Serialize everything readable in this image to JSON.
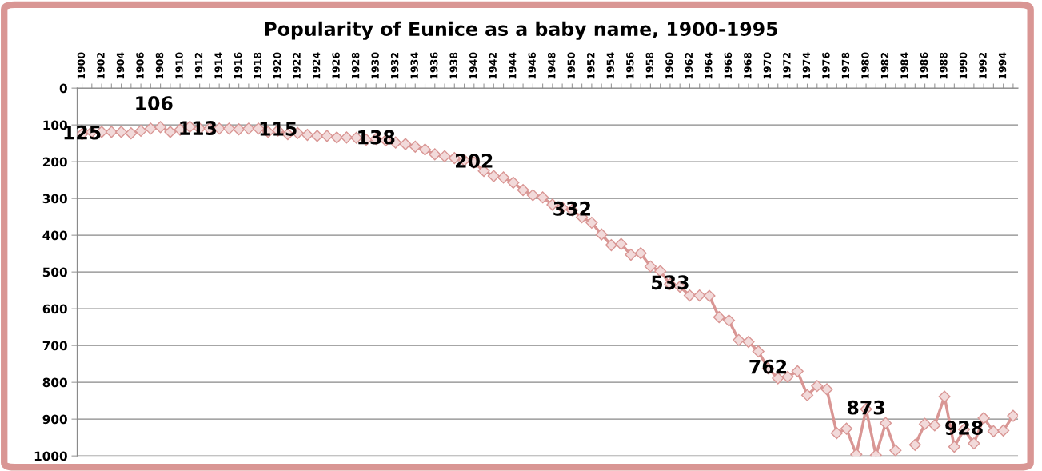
{
  "chart_data": {
    "type": "line",
    "title": "Popularity of Eunice as a baby name, 1900-1995",
    "categories": [
      "1900",
      null,
      "1902",
      null,
      "1904",
      null,
      "1906",
      null,
      "1908",
      null,
      "1910",
      null,
      "1912",
      null,
      "1914",
      null,
      "1916",
      null,
      "1918",
      null,
      "1920",
      null,
      "1922",
      null,
      "1924",
      null,
      "1926",
      null,
      "1928",
      null,
      "1930",
      null,
      "1932",
      null,
      "1934",
      null,
      "1936",
      null,
      "1938",
      null,
      "1940",
      null,
      "1942",
      null,
      "1944",
      null,
      "1946",
      null,
      "1948",
      null,
      "1950",
      null,
      "1952",
      null,
      "1954",
      null,
      "1956",
      null,
      "1958",
      null,
      "1960",
      null,
      "1962",
      null,
      "1964",
      null,
      "1966",
      null,
      "1968",
      null,
      "1970",
      null,
      "1972",
      null,
      "1974",
      null,
      "1976",
      null,
      "1978",
      null,
      "1980",
      null,
      "1982",
      null,
      "1984",
      null,
      "1986",
      null,
      "1988",
      null,
      "1990",
      null,
      "1992",
      null,
      "1994",
      null
    ],
    "series": [
      {
        "color": "#d99694",
        "values": [
          125,
          119,
          119,
          119,
          119,
          123,
          116,
          110,
          106,
          119,
          113,
          105,
          110,
          110,
          110,
          110,
          112,
          110,
          110,
          119,
          115,
          125,
          122,
          127,
          130,
          130,
          134,
          134,
          135,
          140,
          138,
          142,
          148,
          152,
          159,
          167,
          180,
          185,
          190,
          196,
          202,
          225,
          239,
          243,
          257,
          277,
          291,
          297,
          317,
          325,
          332,
          351,
          366,
          398,
          427,
          424,
          453,
          449,
          485,
          498,
          533,
          540,
          564,
          564,
          565,
          623,
          632,
          685,
          690,
          716,
          762,
          789,
          785,
          770,
          835,
          810,
          819,
          938,
          926,
          996,
          873,
          998,
          911,
          985,
          null,
          970,
          913,
          917,
          839,
          975,
          928,
          966,
          897,
          933,
          931,
          891
        ]
      }
    ],
    "ylim": [
      1000,
      0
    ],
    "yticks": [
      0,
      100,
      200,
      300,
      400,
      500,
      600,
      700,
      800,
      900,
      1000
    ],
    "grid": "y",
    "marker": "diamond",
    "line_style": "solid",
    "annotations": [
      {
        "text": "125",
        "x": "1900",
        "y": 125
      },
      {
        "text": "106",
        "x": "1908",
        "y": 106
      },
      {
        "text": "113",
        "x": "1910",
        "y": 113
      },
      {
        "text": "115",
        "x": "1920",
        "y": 115
      },
      {
        "text": "138",
        "x": "1930",
        "y": 138
      },
      {
        "text": "202",
        "x": "1940",
        "y": 202
      },
      {
        "text": "332",
        "x": "1950",
        "y": 332
      },
      {
        "text": "533",
        "x": "1960",
        "y": 533
      },
      {
        "text": "762",
        "x": "1970",
        "y": 762
      },
      {
        "text": "873",
        "x": "1980",
        "y": 873
      },
      {
        "text": "928",
        "x": "1990",
        "y": 928
      }
    ]
  }
}
